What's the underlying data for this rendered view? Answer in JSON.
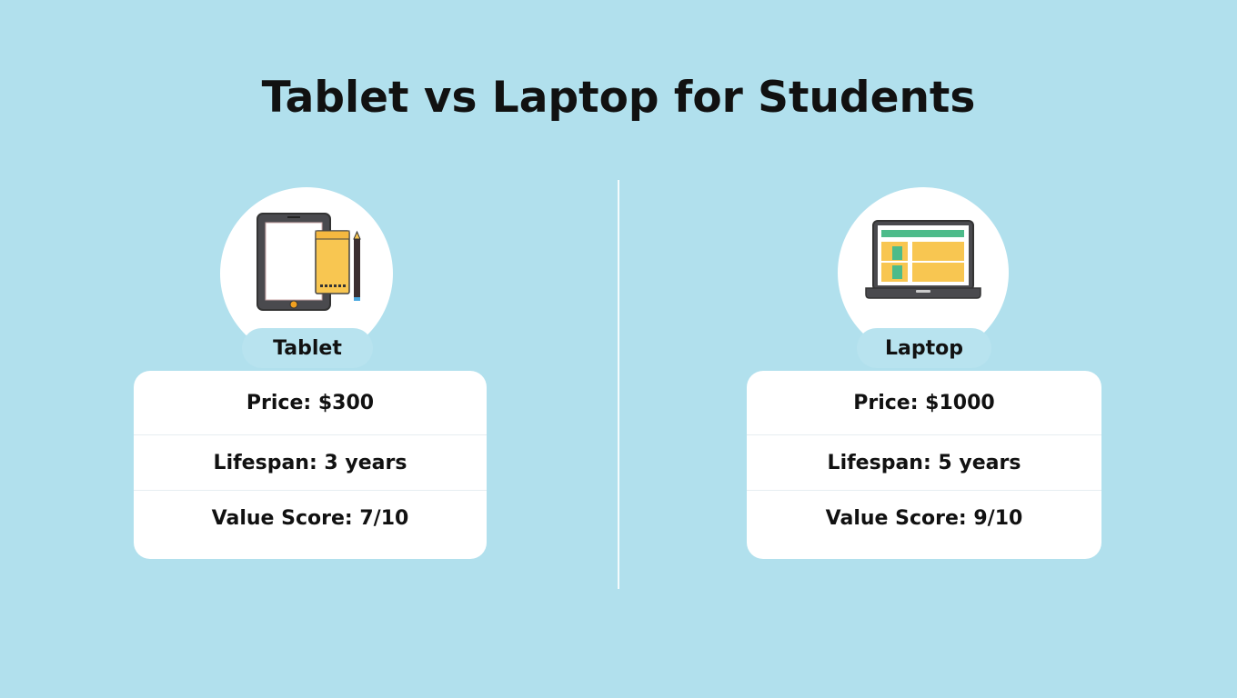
{
  "title": "Tablet vs Laptop for Students",
  "colors": {
    "background": "#b1e0ed",
    "accent_yellow": "#f8c651",
    "accent_green": "#4dbb8a",
    "device_gray": "#4a4a4e"
  },
  "options": [
    {
      "name": "Tablet",
      "icon": "tablet-icon",
      "rows": [
        "Price: $300",
        "Lifespan: 3 years",
        "Value Score: 7/10"
      ]
    },
    {
      "name": "Laptop",
      "icon": "laptop-icon",
      "rows": [
        "Price: $1000",
        "Lifespan: 5 years",
        "Value Score: 9/10"
      ]
    }
  ]
}
